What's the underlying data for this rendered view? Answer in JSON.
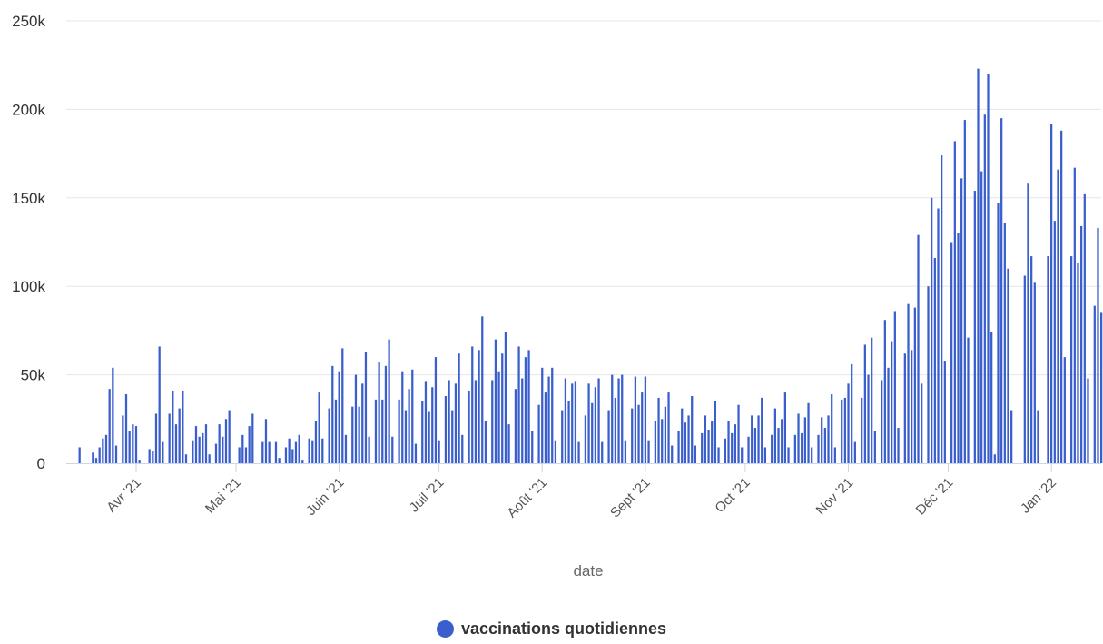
{
  "chart_data": {
    "type": "bar",
    "title": "",
    "xlabel": "date",
    "ylabel": "",
    "ylim": [
      0,
      250000
    ],
    "y_ticks": [
      {
        "value": 0,
        "label": "0"
      },
      {
        "value": 50000,
        "label": "50k"
      },
      {
        "value": 100000,
        "label": "100k"
      },
      {
        "value": 150000,
        "label": "150k"
      },
      {
        "value": 200000,
        "label": "200k"
      },
      {
        "value": 250000,
        "label": "250k"
      }
    ],
    "x_ticks": [
      {
        "date": "2021-04-01",
        "label": "Avr '21"
      },
      {
        "date": "2021-05-01",
        "label": "Mai '21"
      },
      {
        "date": "2021-06-01",
        "label": "Juin '21"
      },
      {
        "date": "2021-07-01",
        "label": "Juil '21"
      },
      {
        "date": "2021-08-01",
        "label": "Août '21"
      },
      {
        "date": "2021-09-01",
        "label": "Sept '21"
      },
      {
        "date": "2021-10-01",
        "label": "Oct '21"
      },
      {
        "date": "2021-11-01",
        "label": "Nov '21"
      },
      {
        "date": "2021-12-01",
        "label": "Déc '21"
      },
      {
        "date": "2022-01-01",
        "label": "Jan '22"
      }
    ],
    "grid": true,
    "legend_position": "bottom-center",
    "color": "#3a5fcd",
    "series": [
      {
        "name": "vaccinations quotidiennes",
        "start_date": "2021-03-15",
        "values": [
          9000,
          0,
          0,
          0,
          6000,
          3000,
          9000,
          14000,
          16000,
          42000,
          54000,
          10000,
          0,
          27000,
          39000,
          18000,
          22000,
          21000,
          2000,
          0,
          0,
          8000,
          7000,
          28000,
          66000,
          12000,
          0,
          28000,
          41000,
          22000,
          31000,
          41000,
          5000,
          0,
          13000,
          21000,
          15000,
          17000,
          22000,
          5000,
          0,
          11000,
          22000,
          15000,
          25000,
          30000,
          0,
          0,
          9000,
          16000,
          9000,
          21000,
          28000,
          0,
          0,
          12000,
          25000,
          12000,
          0,
          12000,
          3000,
          0,
          9000,
          14000,
          8000,
          12000,
          16000,
          2000,
          0,
          14000,
          13000,
          24000,
          40000,
          14000,
          0,
          31000,
          55000,
          36000,
          52000,
          65000,
          16000,
          0,
          32000,
          50000,
          32000,
          45000,
          63000,
          15000,
          0,
          36000,
          57000,
          36000,
          55000,
          70000,
          15000,
          0,
          36000,
          52000,
          30000,
          42000,
          53000,
          11000,
          0,
          35000,
          46000,
          29000,
          43000,
          60000,
          13000,
          0,
          38000,
          47000,
          30000,
          45000,
          62000,
          16000,
          0,
          41000,
          66000,
          47000,
          64000,
          83000,
          24000,
          0,
          47000,
          70000,
          52000,
          62000,
          74000,
          22000,
          0,
          42000,
          66000,
          48000,
          60000,
          64000,
          18000,
          0,
          33000,
          54000,
          40000,
          49000,
          54000,
          13000,
          0,
          30000,
          48000,
          35000,
          45000,
          46000,
          12000,
          0,
          27000,
          45000,
          34000,
          43000,
          48000,
          12000,
          0,
          30000,
          50000,
          37000,
          48000,
          50000,
          13000,
          0,
          31000,
          49000,
          33000,
          40000,
          49000,
          13000,
          0,
          24000,
          37000,
          25000,
          32000,
          40000,
          10000,
          0,
          18000,
          31000,
          23000,
          27000,
          38000,
          10000,
          0,
          17000,
          27000,
          19000,
          24000,
          35000,
          9000,
          0,
          14000,
          24000,
          17000,
          22000,
          33000,
          9000,
          0,
          15000,
          27000,
          20000,
          27000,
          37000,
          9000,
          0,
          16000,
          31000,
          20000,
          25000,
          40000,
          9000,
          0,
          16000,
          28000,
          17000,
          26000,
          34000,
          9000,
          0,
          16000,
          26000,
          20000,
          27000,
          39000,
          9000,
          0,
          36000,
          37000,
          45000,
          56000,
          12000,
          0,
          37000,
          67000,
          50000,
          71000,
          18000,
          0,
          47000,
          81000,
          54000,
          69000,
          86000,
          20000,
          0,
          62000,
          90000,
          64000,
          88000,
          129000,
          45000,
          0,
          100000,
          150000,
          116000,
          144000,
          174000,
          58000,
          0,
          125000,
          182000,
          130000,
          161000,
          194000,
          71000,
          0,
          154000,
          223000,
          165000,
          197000,
          220000,
          74000,
          5000,
          147000,
          195000,
          136000,
          110000,
          30000,
          0,
          0,
          0,
          106000,
          158000,
          117000,
          102000,
          30000,
          0,
          0,
          117000,
          192000,
          137000,
          166000,
          188000,
          60000,
          0,
          117000,
          167000,
          113000,
          134000,
          152000,
          48000,
          0,
          89000,
          133000,
          85000
        ]
      }
    ]
  }
}
